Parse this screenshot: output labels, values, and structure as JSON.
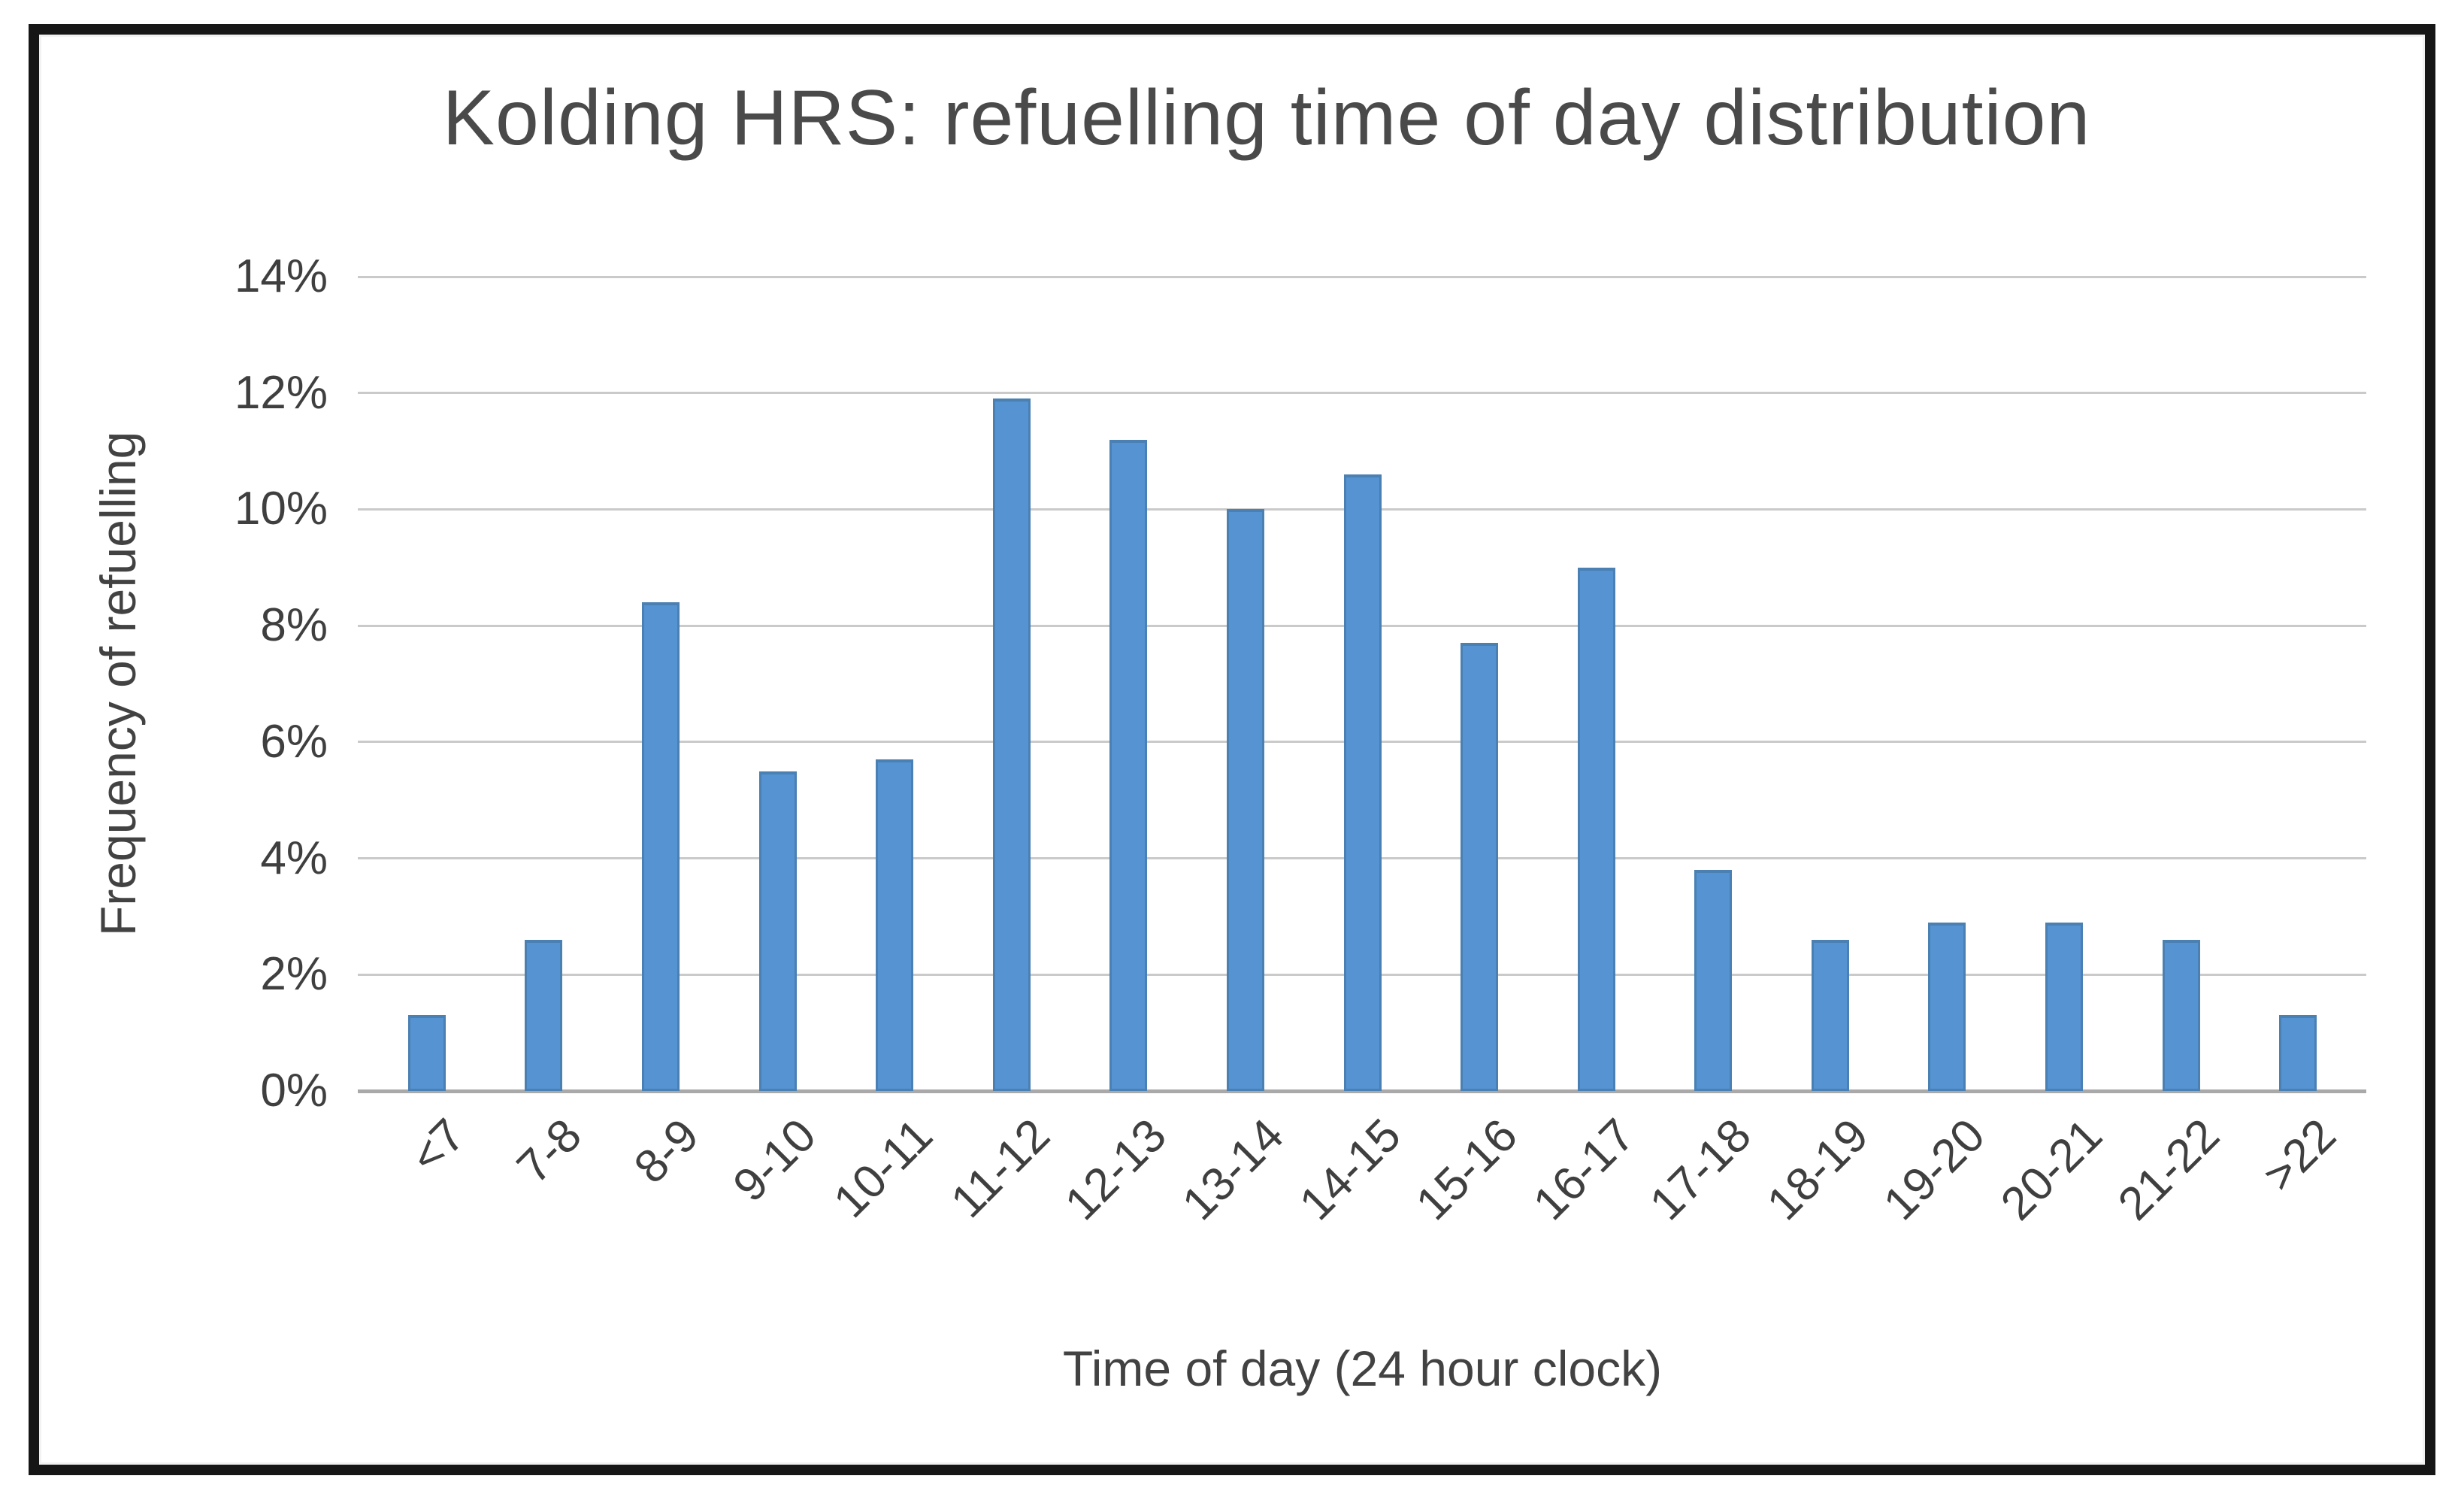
{
  "chart_data": {
    "type": "bar",
    "title": "Kolding HRS: refuelling time of day distribution",
    "xlabel": "Time of day (24 hour clock)",
    "ylabel": "Frequency of refuelling",
    "categories": [
      "<7",
      "7-8",
      "8-9",
      "9-10",
      "10-11",
      "11-12",
      "12-13",
      "13-14",
      "14-15",
      "15-16",
      "16-17",
      "17-18",
      "18-19",
      "19-20",
      "20-21",
      "21-22",
      ">22"
    ],
    "values": [
      1.3,
      2.6,
      8.4,
      5.5,
      5.7,
      11.9,
      11.2,
      10.0,
      10.6,
      7.7,
      9.0,
      3.8,
      2.6,
      2.9,
      2.9,
      2.6,
      1.3
    ],
    "unit": "%",
    "ylim": [
      0,
      14
    ],
    "ytick_step": 2,
    "ytick_labels": [
      "0%",
      "2%",
      "4%",
      "6%",
      "8%",
      "10%",
      "12%",
      "14%"
    ],
    "grid": true,
    "legend": false,
    "colors": {
      "bar_fill": "#5593d3",
      "bar_edge": "#4a80b2",
      "gridline": "#cacaca",
      "axis_line": "#a9a9a9",
      "tick_text": "#3f3f3f",
      "axis_title_text": "#424242",
      "title_text": "#4a4a4a",
      "frame_border": "#161616",
      "background": "#ffffff"
    }
  }
}
